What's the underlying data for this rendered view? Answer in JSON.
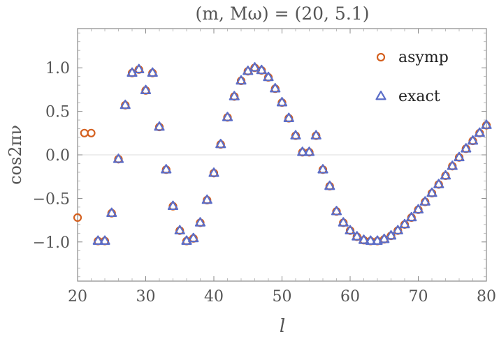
{
  "chart_data": {
    "type": "scatter",
    "title": "(m, Mω) = (20, 5.1)",
    "xlabel": "l",
    "ylabel": "cos2πν",
    "xlim": [
      20,
      80
    ],
    "ylim": [
      -1.45,
      1.45
    ],
    "x_ticks": [
      20,
      30,
      40,
      50,
      60,
      70,
      80
    ],
    "x_tick_labels": [
      "20",
      "30",
      "40",
      "50",
      "60",
      "70",
      "80"
    ],
    "y_ticks": [
      1.0,
      0.5,
      0.0,
      -0.5,
      -1.0
    ],
    "y_tick_labels": [
      "1.0",
      "0.5",
      "0.0",
      "−0.5",
      "−1.0"
    ],
    "legend_position": "top-right",
    "series": [
      {
        "name": "asymp",
        "marker": "circle",
        "color": "#D4601F",
        "x": [
          20,
          21,
          22,
          23,
          24,
          25,
          26,
          27,
          28,
          29,
          30,
          31,
          32,
          33,
          34,
          35,
          36,
          37,
          38,
          39,
          40,
          41,
          42,
          43,
          44,
          45,
          46,
          47,
          48,
          49,
          50,
          51,
          52,
          53,
          54,
          55,
          56,
          57,
          58,
          59,
          60,
          61,
          62,
          63,
          64,
          65,
          66,
          67,
          68,
          69,
          70,
          71,
          72,
          73,
          74,
          75,
          76,
          77,
          78,
          79,
          80
        ],
        "y": [
          -0.72,
          0.25,
          0.25,
          -0.99,
          -0.99,
          -0.67,
          -0.05,
          0.57,
          0.94,
          0.98,
          0.74,
          0.94,
          0.32,
          -0.17,
          -0.59,
          -0.87,
          -0.99,
          -0.96,
          -0.78,
          -0.52,
          -0.21,
          0.12,
          0.43,
          0.67,
          0.85,
          0.96,
          1.0,
          0.97,
          0.89,
          0.76,
          0.6,
          0.42,
          0.22,
          0.03,
          0.03,
          0.22,
          -0.17,
          -0.36,
          -0.65,
          -0.78,
          -0.87,
          -0.94,
          -0.98,
          -0.99,
          -0.99,
          -0.97,
          -0.93,
          -0.87,
          -0.8,
          -0.72,
          -0.63,
          -0.54,
          -0.44,
          -0.34,
          -0.24,
          -0.13,
          -0.03,
          0.07,
          0.16,
          0.25,
          0.34
        ]
      },
      {
        "name": "exact",
        "marker": "triangle",
        "color": "#5B6DC8",
        "x": [
          23,
          24,
          25,
          26,
          27,
          28,
          29,
          30,
          31,
          32,
          33,
          34,
          35,
          36,
          37,
          38,
          39,
          40,
          41,
          42,
          43,
          44,
          45,
          46,
          47,
          48,
          49,
          50,
          51,
          52,
          53,
          54,
          55,
          56,
          57,
          58,
          59,
          60,
          61,
          62,
          63,
          64,
          65,
          66,
          67,
          68,
          69,
          70,
          71,
          72,
          73,
          74,
          75,
          76,
          77,
          78,
          79,
          80
        ],
        "y": [
          -0.99,
          -0.99,
          -0.67,
          -0.05,
          0.57,
          0.94,
          0.98,
          0.74,
          0.94,
          0.32,
          -0.17,
          -0.59,
          -0.87,
          -0.99,
          -0.96,
          -0.78,
          -0.52,
          -0.21,
          0.12,
          0.43,
          0.67,
          0.85,
          0.96,
          1.0,
          0.97,
          0.89,
          0.76,
          0.6,
          0.42,
          0.22,
          0.03,
          0.03,
          0.22,
          -0.17,
          -0.36,
          -0.65,
          -0.78,
          -0.87,
          -0.94,
          -0.98,
          -0.99,
          -0.99,
          -0.97,
          -0.93,
          -0.87,
          -0.8,
          -0.72,
          -0.63,
          -0.54,
          -0.44,
          -0.34,
          -0.24,
          -0.13,
          -0.03,
          0.07,
          0.16,
          0.25,
          0.34
        ]
      }
    ]
  }
}
